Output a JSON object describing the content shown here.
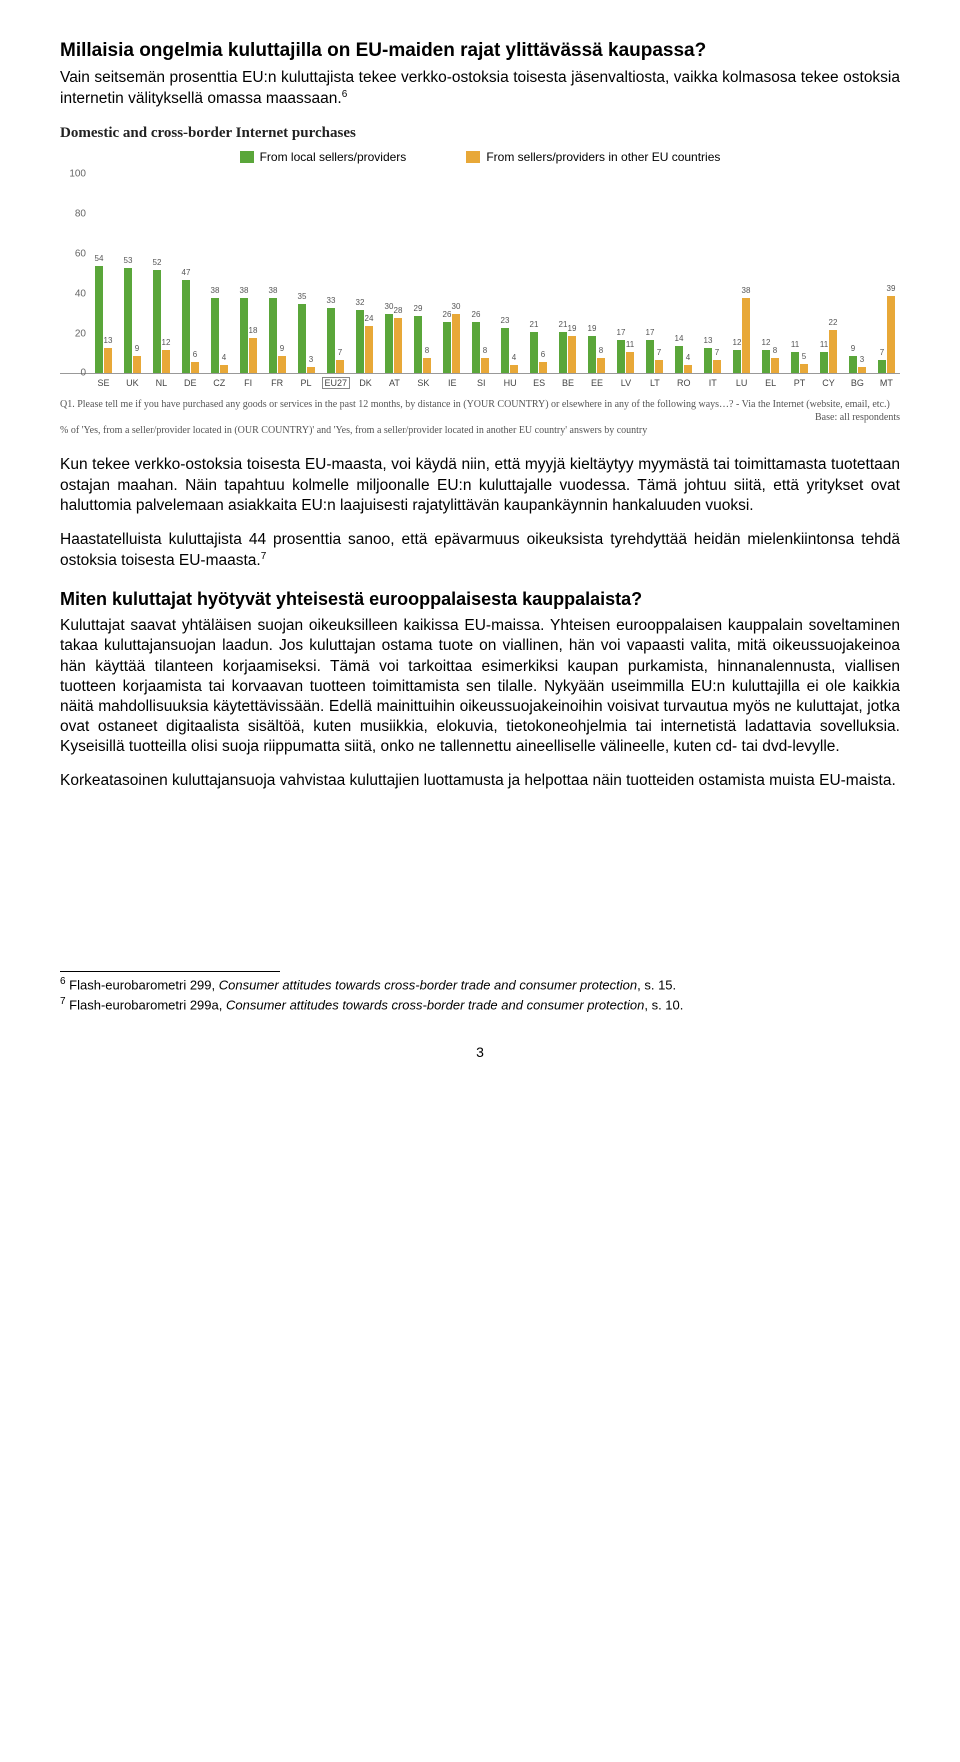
{
  "heading1": "Millaisia ongelmia kuluttajilla on EU-maiden rajat ylittävässä kaupassa?",
  "para1": "Vain seitsemän prosenttia EU:n kuluttajista tekee verkko-ostoksia toisesta jäsenvaltiosta, vaikka kolmasosa tekee ostoksia internetin välityksellä omassa maassaan.",
  "sup1": "6",
  "chart": {
    "title": "Domestic and cross-border Internet purchases",
    "legend1": "From local sellers/providers",
    "legend2": "From sellers/providers in other EU countries",
    "color_local": "#5aa63a",
    "color_other": "#e8a838",
    "y_max": 100,
    "y_ticks": [
      0,
      20,
      40,
      60,
      80,
      100
    ],
    "countries": [
      {
        "code": "SE",
        "local": 54,
        "other": 13
      },
      {
        "code": "UK",
        "local": 53,
        "other": 9
      },
      {
        "code": "NL",
        "local": 52,
        "other": 12
      },
      {
        "code": "DE",
        "local": 47,
        "other": 6
      },
      {
        "code": "CZ",
        "local": 38,
        "other": 4
      },
      {
        "code": "FI",
        "local": 38,
        "other": 18
      },
      {
        "code": "FR",
        "local": 38,
        "other": 9
      },
      {
        "code": "PL",
        "local": 35,
        "other": 3
      },
      {
        "code": "EU27",
        "local": 33,
        "other": 7
      },
      {
        "code": "DK",
        "local": 32,
        "other": 24
      },
      {
        "code": "AT",
        "local": 30,
        "other": 28
      },
      {
        "code": "SK",
        "local": 29,
        "other": 8
      },
      {
        "code": "IE",
        "local": 26,
        "other": 30
      },
      {
        "code": "SI",
        "local": 26,
        "other": 8
      },
      {
        "code": "HU",
        "local": 23,
        "other": 4
      },
      {
        "code": "ES",
        "local": 21,
        "other": 6
      },
      {
        "code": "BE",
        "local": 21,
        "other": 19
      },
      {
        "code": "EE",
        "local": 19,
        "other": 8
      },
      {
        "code": "LV",
        "local": 17,
        "other": 11
      },
      {
        "code": "LT",
        "local": 17,
        "other": 7
      },
      {
        "code": "RO",
        "local": 14,
        "other": 4
      },
      {
        "code": "IT",
        "local": 13,
        "other": 7
      },
      {
        "code": "LU",
        "local": 12,
        "other": 38
      },
      {
        "code": "EL",
        "local": 12,
        "other": 8
      },
      {
        "code": "PT",
        "local": 11,
        "other": 5
      },
      {
        "code": "CY",
        "local": 11,
        "other": 22
      },
      {
        "code": "BG",
        "local": 9,
        "other": 3
      },
      {
        "code": "MT",
        "local": 7,
        "other": 39
      }
    ],
    "caption_q": "Q1. Please tell me if you have purchased any goods or services in the past 12 months, by distance in (YOUR COUNTRY) or elsewhere in any of the following ways…? - Via the Internet (website, email, etc.)",
    "caption_base": "Base: all respondents",
    "caption_pct": "% of 'Yes, from a seller/provider located in (OUR COUNTRY)' and 'Yes, from a seller/provider located in another EU country' answers by country"
  },
  "para2": "Kun tekee verkko-ostoksia toisesta EU-maasta, voi käydä niin, että myyjä kieltäytyy myymästä tai toimittamasta tuotettaan ostajan maahan. Näin tapahtuu kolmelle miljoonalle EU:n kuluttajalle vuodessa. Tämä johtuu siitä, että yritykset ovat haluttomia palvelemaan asiakkaita EU:n laajuisesti rajatylittävän kaupankäynnin hankaluuden vuoksi.",
  "para3a": "Haastatelluista kuluttajista 44 prosenttia sanoo, että epävarmuus oikeuksista tyrehdyttää heidän mielenkiintonsa tehdä ostoksia toisesta EU-maasta.",
  "sup3": "7",
  "heading2": "Miten kuluttajat hyötyvät yhteisestä eurooppalaisesta kauppalaista?",
  "para4": "Kuluttajat saavat yhtäläisen suojan oikeuksilleen kaikissa EU-maissa. Yhteisen eurooppalaisen kauppalain soveltaminen takaa kuluttajansuojan laadun. Jos kuluttajan ostama tuote on viallinen, hän voi vapaasti valita, mitä oikeussuojakeinoa hän käyttää tilanteen korjaamiseksi. Tämä voi tarkoittaa esimerkiksi kaupan purkamista, hinnanalennusta, viallisen tuotteen korjaamista tai korvaavan tuotteen toimittamista sen tilalle. Nykyään useimmilla EU:n kuluttajilla ei ole kaikkia näitä mahdollisuuksia käytettävissään. Edellä mainittuihin oikeussuojakeinoihin voisivat turvautua myös ne kuluttajat, jotka ovat ostaneet digitaalista sisältöä, kuten musiikkia, elokuvia, tietokoneohjelmia tai internetistä ladattavia sovelluksia. Kyseisillä tuotteilla olisi suoja riippumatta siitä, onko ne tallennettu aineelliselle välineelle, kuten cd- tai dvd-levylle.",
  "para5": "Korkeatasoinen kuluttajansuoja vahvistaa kuluttajien luottamusta ja helpottaa näin tuotteiden ostamista muista EU-maista.",
  "footnotes": {
    "fn6_num": "6",
    "fn6_a": " Flash-eurobarometri 299, ",
    "fn6_em": "Consumer attitudes towards cross-border trade and consumer protection",
    "fn6_b": ", s. 15.",
    "fn7_num": "7",
    "fn7_a": " Flash-eurobarometri 299a, ",
    "fn7_em": "Consumer attitudes towards cross-border trade and consumer protection",
    "fn7_b": ", s. 10."
  },
  "pagenum": "3"
}
